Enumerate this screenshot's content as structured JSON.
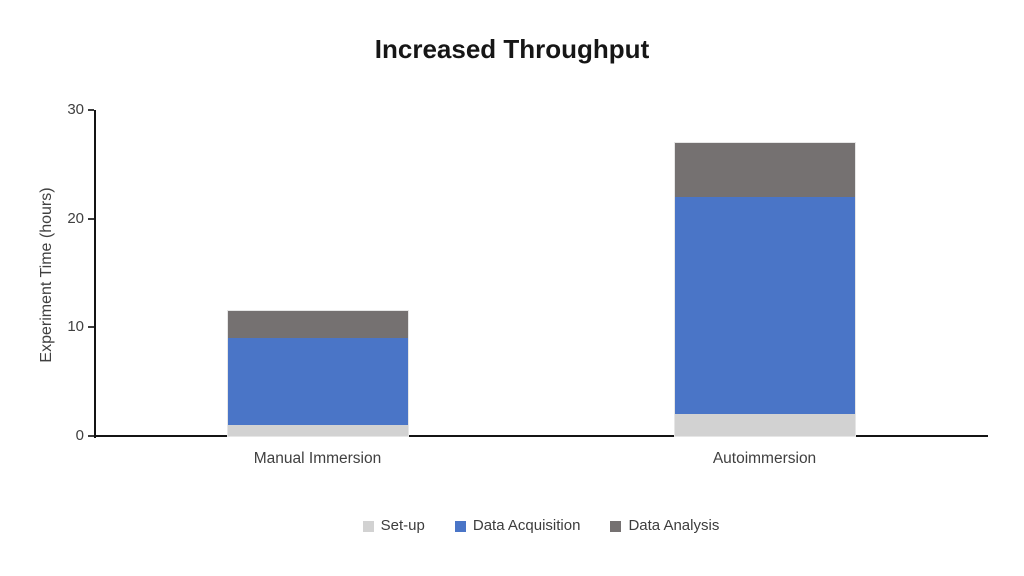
{
  "title": "Increased Throughput",
  "chart_data": {
    "type": "bar",
    "subtype": "stacked-vertical",
    "title": "Increased Throughput",
    "categories": [
      "Manual Immersion",
      "Autoimmersion"
    ],
    "series": [
      {
        "name": "Set-up",
        "color": "#d2d2d2",
        "values": [
          1,
          2
        ]
      },
      {
        "name": "Data Acquisition",
        "color": "#4a75c7",
        "values": [
          8,
          20
        ]
      },
      {
        "name": "Data Analysis",
        "color": "#757171",
        "values": [
          2.5,
          5
        ]
      }
    ],
    "xlabel": "",
    "ylabel": "Experiment Time (hours)",
    "yticks": [
      0,
      10,
      20,
      30
    ],
    "ylim": [
      0,
      30
    ],
    "grid": false,
    "legend_position": "bottom",
    "background_color": "#ffffff",
    "axis_color": "#141414",
    "text_color": "#404040"
  }
}
